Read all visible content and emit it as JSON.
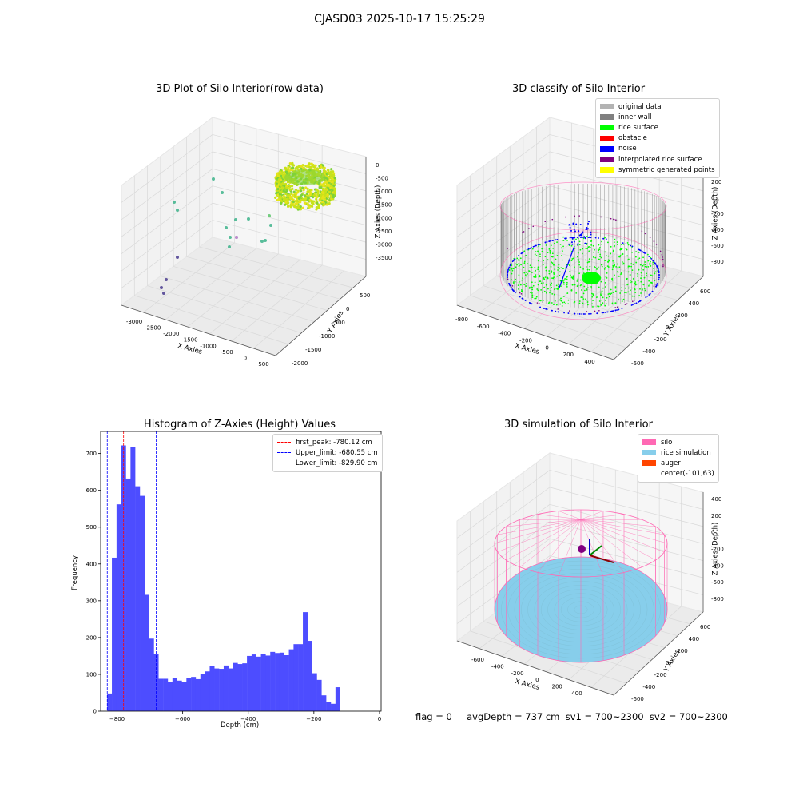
{
  "figure_title": "CJASD03 2025-10-17 15:25:29",
  "status_text": "flag = 0     avgDepth = 737 cm  sv1 = 700~2300  sv2 = 700~2300",
  "colors": {
    "silo": "#ff69b4",
    "rice_simulation": "#87ceeb",
    "auger": "#ff4500",
    "original_data": "#b3b3b3",
    "inner_wall": "#808080",
    "rice_surface": "#00ff00",
    "obstacle": "#ff0000",
    "noise": "#0000ff",
    "interpolated": "#800080",
    "symmetric": "#ffff00",
    "hist_bar": "#4d4dff"
  },
  "chart_data": [
    {
      "type": "scatter",
      "title": "3D Plot of Silo Interior(row data)",
      "xlabel": "X Axies",
      "ylabel": "Y Axies",
      "zlabel": "Z Axies (Depth)",
      "x_ticks": [
        "-3000",
        "-2500",
        "-2000",
        "-1500",
        "-1000",
        "-500",
        "0",
        "500"
      ],
      "y_ticks": [
        "500",
        "0",
        "-500",
        "-1000",
        "-1500",
        "-2000"
      ],
      "z_ticks": [
        "0",
        "-500",
        "-1000",
        "-1500",
        "-2000",
        "-2500",
        "-3000",
        "-3500"
      ]
    },
    {
      "type": "scatter",
      "title": "3D classify of Silo Interior",
      "xlabel": "X Axies",
      "ylabel": "Y Axies",
      "zlabel": "Z Axies (Depth)",
      "x_ticks": [
        "-800",
        "-600",
        "-400",
        "-200",
        "0",
        "200",
        "400"
      ],
      "y_ticks": [
        "600",
        "400",
        "200",
        "0",
        "-200",
        "-400",
        "-600"
      ],
      "z_ticks": [
        "200",
        "0",
        "-200",
        "-400",
        "-600",
        "-800"
      ],
      "legend": [
        "original data",
        "inner wall",
        "rice surface",
        "obstacle",
        "noise",
        "interpolated rice surface",
        "symmetric generated points"
      ]
    },
    {
      "type": "bar",
      "title": "Histogram of Z-Axies (Height) Values",
      "xlabel": "Depth (cm)",
      "ylabel": "Frequency",
      "xlim": [
        -850,
        5
      ],
      "ylim": [
        0,
        760
      ],
      "x_ticks": [
        -800,
        -600,
        -400,
        -200,
        0
      ],
      "y_ticks": [
        0,
        100,
        200,
        300,
        400,
        500,
        600,
        700
      ],
      "bin_start": -830,
      "bin_width": 14.2,
      "values": [
        48,
        417,
        562,
        722,
        632,
        717,
        611,
        585,
        316,
        197,
        155,
        88,
        88,
        79,
        90,
        83,
        79,
        91,
        93,
        87,
        100,
        108,
        122,
        116,
        115,
        124,
        116,
        131,
        128,
        130,
        150,
        154,
        148,
        155,
        151,
        161,
        158,
        159,
        152,
        168,
        182,
        182,
        269,
        191,
        103,
        85,
        43,
        25,
        20,
        65
      ],
      "vlines": [
        {
          "name": "first_peak: -780.12 cm",
          "x": -780.12,
          "color": "#ff0000"
        },
        {
          "name": "Upper_limit: -680.55 cm",
          "x": -680.55,
          "color": "#0000ff"
        },
        {
          "name": "Lower_limit: -829.90 cm",
          "x": -829.9,
          "color": "#0000ff"
        }
      ]
    },
    {
      "type": "scatter",
      "title": "3D simulation of Silo Interior",
      "xlabel": "X Axies",
      "ylabel": "Y Axies",
      "zlabel": "Z Axies (Depth)",
      "x_ticks": [
        "-600",
        "-400",
        "-200",
        "0",
        "200",
        "400"
      ],
      "y_ticks": [
        "600",
        "400",
        "200",
        "0",
        "-200",
        "-400",
        "-600"
      ],
      "z_ticks": [
        "400",
        "200",
        "0",
        "-200",
        "-400",
        "-600",
        "-800"
      ],
      "legend": [
        "silo",
        "rice simulation",
        "auger",
        "center(-101,63)"
      ]
    }
  ]
}
